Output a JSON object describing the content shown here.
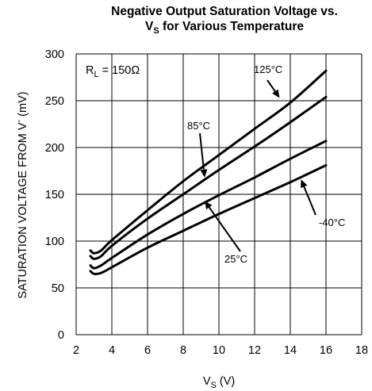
{
  "chart_data": {
    "type": "line",
    "title_line1": "Negative Output Saturation Voltage vs.",
    "title_line2_main": "V",
    "title_line2_sub": "S",
    "title_line2_rest": " for Various Temperature",
    "xlabel_main": "V",
    "xlabel_sub": "S",
    "xlabel_rest": " (V)",
    "ylabel": "SATURATION VOLTAGE FROM V",
    "ylabel_sup": "-",
    "ylabel_unit": " (mV)",
    "xlim": [
      2,
      18
    ],
    "ylim": [
      0,
      300
    ],
    "xticks": [
      "2",
      "4",
      "6",
      "8",
      "10",
      "12",
      "14",
      "16",
      "18"
    ],
    "yticks": [
      "0",
      "50",
      "100",
      "150",
      "200",
      "250",
      "300"
    ],
    "grid": true,
    "condition_main": "R",
    "condition_sub": "L",
    "condition_rest": " = 150Ω",
    "series": [
      {
        "name": "125°C",
        "x": [
          2.8,
          3.0,
          3.4,
          4,
          6,
          8,
          10,
          12,
          14,
          16
        ],
        "values": [
          90,
          87,
          90,
          101,
          133,
          164,
          192,
          220,
          248,
          282
        ]
      },
      {
        "name": "85°C",
        "x": [
          2.8,
          3.0,
          3.4,
          4,
          6,
          8,
          10,
          12,
          14,
          16
        ],
        "values": [
          84,
          81,
          84,
          95,
          124,
          150,
          176,
          201,
          227,
          254
        ]
      },
      {
        "name": "25°C",
        "x": [
          2.8,
          3.0,
          3.4,
          4,
          6,
          8,
          10,
          12,
          14,
          16
        ],
        "values": [
          74,
          71,
          74,
          82,
          107,
          129,
          149,
          168,
          188,
          207
        ]
      },
      {
        "name": "-40°C",
        "x": [
          2.8,
          3.0,
          3.4,
          4,
          6,
          8,
          10,
          12,
          14,
          16
        ],
        "values": [
          68,
          65,
          66,
          72,
          93,
          111,
          129,
          146,
          163,
          181
        ]
      }
    ],
    "annotations": [
      {
        "label": "125°C",
        "series": "125°C",
        "arrow_to": [
          13.4,
          253
        ]
      },
      {
        "label": "85°C",
        "series": "85°C",
        "arrow_to": [
          9.2,
          168
        ]
      },
      {
        "label": "25°C",
        "series": "25°C",
        "arrow_to": [
          9.2,
          143
        ]
      },
      {
        "label": "-40°C",
        "series": "-40°C",
        "arrow_to": [
          14.6,
          166
        ]
      }
    ]
  }
}
